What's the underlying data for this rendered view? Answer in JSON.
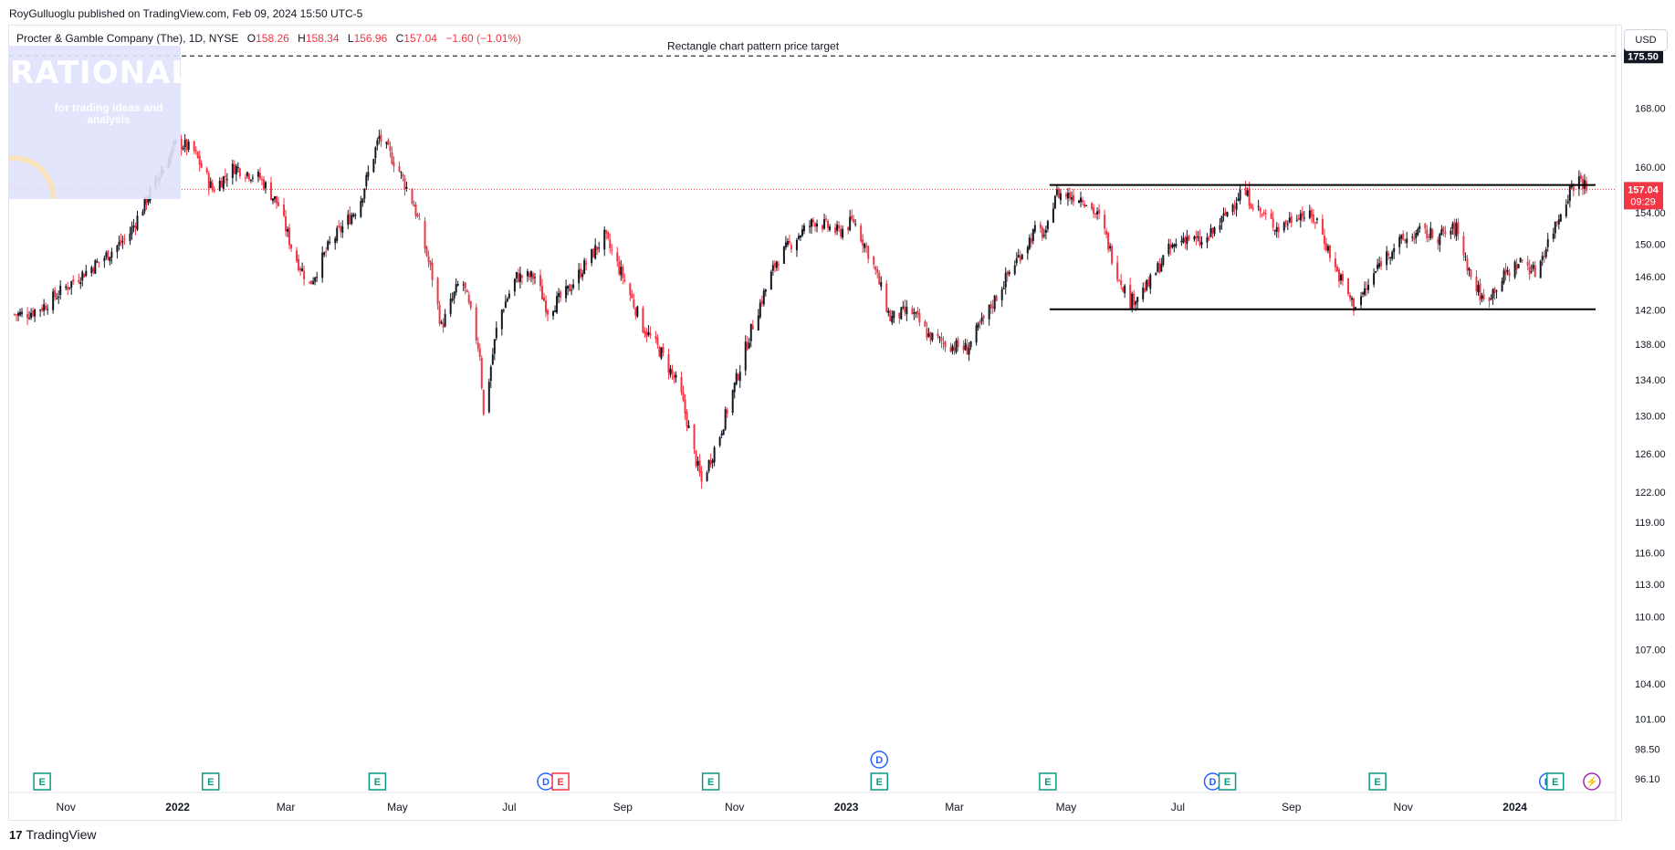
{
  "header": {
    "published": "RoyGulluoglu published on TradingView.com, Feb 09, 2024 15:50 UTC-5"
  },
  "legend": {
    "symbol": "Procter & Gamble Company (The), 1D, NYSE",
    "o_label": "O",
    "o_value": "158.26",
    "h_label": "H",
    "h_value": "158.34",
    "l_label": "L",
    "l_value": "156.96",
    "c_label": "C",
    "c_value": "157.04",
    "change": "−1.60 (−1.01%)"
  },
  "watermark": {
    "title": "RATIONALE",
    "subtitle": "for trading ideas and analysis"
  },
  "currency_button": "USD",
  "footer": {
    "logo_text": "TradingView",
    "logo_glyph": "17"
  },
  "colors": {
    "up": "#131722",
    "down": "#f23645",
    "current_price_bg": "#f23645",
    "target_bg": "#131722"
  },
  "chart_data": {
    "type": "candlestick",
    "symbol": "Procter & Gamble Company (The)",
    "interval": "1D",
    "exchange": "NYSE",
    "currency": "USD",
    "x_axis_ticks": [
      "Nov",
      "2022",
      "Mar",
      "May",
      "Jul",
      "Sep",
      "Nov",
      "2023",
      "Mar",
      "May",
      "Jul",
      "Sep",
      "Nov",
      "2024"
    ],
    "y_axis_ticks": [
      96.1,
      98.5,
      101.0,
      104.0,
      107.0,
      110.0,
      113.0,
      116.0,
      119.0,
      122.0,
      126.0,
      130.0,
      134.0,
      138.0,
      142.0,
      146.0,
      150.0,
      154.0,
      160.0,
      168.0
    ],
    "y_axis_tick_labels": [
      "96.10",
      "98.50",
      "101.00",
      "104.00",
      "107.00",
      "110.00",
      "113.00",
      "116.00",
      "119.00",
      "122.00",
      "126.00",
      "130.00",
      "134.00",
      "138.00",
      "142.00",
      "146.00",
      "150.00",
      "154.00",
      "160.00",
      "168.00"
    ],
    "ylim": [
      95.0,
      180.0
    ],
    "scale": "log",
    "last_price": 157.04,
    "last_price_label": "157.04",
    "countdown_label": "09:29",
    "target_price": 175.5,
    "target_price_label": "175.50",
    "target_annotation": "Rectangle chart pattern price target",
    "rectangle": {
      "top": 157.6,
      "bottom": 142.1,
      "start": "2023-04-22",
      "end": "2024-02-14"
    },
    "price_path": [
      [
        "2021-10-10",
        141.5
      ],
      [
        "2021-10-20",
        142.5
      ],
      [
        "2021-11-05",
        145.5
      ],
      [
        "2021-11-20",
        148.0
      ],
      [
        "2021-12-05",
        151.0
      ],
      [
        "2021-12-20",
        158.0
      ],
      [
        "2022-01-01",
        163.5
      ],
      [
        "2022-01-10",
        162.0
      ],
      [
        "2022-01-20",
        157.0
      ],
      [
        "2022-02-01",
        160.0
      ],
      [
        "2022-02-15",
        158.5
      ],
      [
        "2022-02-25",
        155.0
      ],
      [
        "2022-03-05",
        149.0
      ],
      [
        "2022-03-14",
        145.0
      ],
      [
        "2022-03-25",
        150.0
      ],
      [
        "2022-04-10",
        155.0
      ],
      [
        "2022-04-21",
        164.0
      ],
      [
        "2022-05-01",
        160.0
      ],
      [
        "2022-05-10",
        155.0
      ],
      [
        "2022-05-20",
        146.0
      ],
      [
        "2022-05-25",
        140.0
      ],
      [
        "2022-06-05",
        146.0
      ],
      [
        "2022-06-15",
        137.0
      ],
      [
        "2022-06-17",
        130.0
      ],
      [
        "2022-06-25",
        141.0
      ],
      [
        "2022-07-05",
        146.0
      ],
      [
        "2022-07-15",
        146.0
      ],
      [
        "2022-07-22",
        142.0
      ],
      [
        "2022-08-01",
        144.0
      ],
      [
        "2022-08-10",
        147.0
      ],
      [
        "2022-08-22",
        151.0
      ],
      [
        "2022-09-01",
        146.0
      ],
      [
        "2022-09-12",
        140.0
      ],
      [
        "2022-09-22",
        137.0
      ],
      [
        "2022-10-02",
        133.0
      ],
      [
        "2022-10-10",
        126.0
      ],
      [
        "2022-10-14",
        123.0
      ],
      [
        "2022-10-24",
        128.0
      ],
      [
        "2022-11-02",
        134.0
      ],
      [
        "2022-11-12",
        141.0
      ],
      [
        "2022-11-24",
        148.0
      ],
      [
        "2022-12-05",
        151.0
      ],
      [
        "2022-12-15",
        153.0
      ],
      [
        "2022-12-28",
        151.5
      ],
      [
        "2023-01-05",
        153.0
      ],
      [
        "2023-01-15",
        148.0
      ],
      [
        "2023-01-25",
        141.0
      ],
      [
        "2023-02-05",
        142.0
      ],
      [
        "2023-02-15",
        139.0
      ],
      [
        "2023-02-25",
        138.0
      ],
      [
        "2023-03-08",
        137.5
      ],
      [
        "2023-03-20",
        142.0
      ],
      [
        "2023-04-01",
        147.0
      ],
      [
        "2023-04-15",
        152.0
      ],
      [
        "2023-04-20",
        151.0
      ],
      [
        "2023-04-25",
        156.5
      ],
      [
        "2023-05-10",
        156.0
      ],
      [
        "2023-05-20",
        153.0
      ],
      [
        "2023-05-28",
        147.0
      ],
      [
        "2023-06-05",
        143.0
      ],
      [
        "2023-06-15",
        145.0
      ],
      [
        "2023-06-25",
        149.0
      ],
      [
        "2023-07-05",
        151.0
      ],
      [
        "2023-07-15",
        150.0
      ],
      [
        "2023-07-25",
        153.0
      ],
      [
        "2023-08-05",
        157.0
      ],
      [
        "2023-08-15",
        154.0
      ],
      [
        "2023-08-25",
        152.0
      ],
      [
        "2023-09-05",
        154.0
      ],
      [
        "2023-09-15",
        153.0
      ],
      [
        "2023-09-25",
        147.0
      ],
      [
        "2023-10-05",
        142.5
      ],
      [
        "2023-10-12",
        144.5
      ],
      [
        "2023-10-20",
        148.0
      ],
      [
        "2023-10-28",
        150.0
      ],
      [
        "2023-11-10",
        151.5
      ],
      [
        "2023-11-20",
        151.0
      ],
      [
        "2023-11-30",
        152.0
      ],
      [
        "2023-12-08",
        146.0
      ],
      [
        "2023-12-15",
        143.0
      ],
      [
        "2023-12-28",
        146.5
      ],
      [
        "2024-01-05",
        148.0
      ],
      [
        "2024-01-12",
        146.5
      ],
      [
        "2024-01-24",
        153.0
      ],
      [
        "2024-02-01",
        157.5
      ],
      [
        "2024-02-06",
        158.5
      ],
      [
        "2024-02-09",
        157.04
      ]
    ],
    "event_markers": [
      {
        "date": "2021-10-19",
        "type": "E"
      },
      {
        "date": "2022-01-19",
        "type": "E"
      },
      {
        "date": "2022-04-20",
        "type": "E"
      },
      {
        "date": "2022-07-21",
        "type": "D"
      },
      {
        "date": "2022-07-29",
        "type": "E",
        "style": "red"
      },
      {
        "date": "2022-10-19",
        "type": "E"
      },
      {
        "date": "2023-01-19",
        "type": "E"
      },
      {
        "date": "2023-01-19",
        "type": "D",
        "row": "upper"
      },
      {
        "date": "2023-04-21",
        "type": "E"
      },
      {
        "date": "2023-07-20",
        "type": "D"
      },
      {
        "date": "2023-07-28",
        "type": "E"
      },
      {
        "date": "2023-10-18",
        "type": "E"
      },
      {
        "date": "2024-01-19",
        "type": "D"
      },
      {
        "date": "2024-01-23",
        "type": "E"
      },
      {
        "date": "2024-02-12",
        "type": "⚡",
        "style": "purple"
      }
    ]
  }
}
